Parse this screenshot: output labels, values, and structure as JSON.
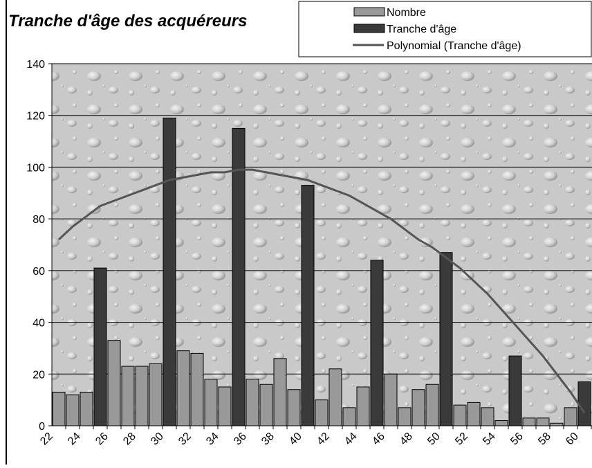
{
  "chart_data": {
    "type": "bar",
    "title": "Tranche d'âge des acquéreurs",
    "categories": [
      "22",
      null,
      "24",
      null,
      "26",
      null,
      "28",
      null,
      "30",
      null,
      "32",
      null,
      "34",
      null,
      "36",
      null,
      "38",
      null,
      "40",
      null,
      "42",
      null,
      "44",
      null,
      "46",
      null,
      "48",
      null,
      "50",
      null,
      "52",
      null,
      "54",
      null,
      "56",
      null,
      "58",
      null,
      "60"
    ],
    "series": [
      {
        "name": "Nombre",
        "type": "bar",
        "color": "#999999",
        "values": [
          13,
          12,
          13,
          null,
          33,
          23,
          23,
          24,
          null,
          29,
          28,
          18,
          15,
          null,
          18,
          16,
          26,
          14,
          null,
          10,
          22,
          7,
          15,
          null,
          20,
          7,
          14,
          16,
          null,
          8,
          9,
          7,
          2,
          null,
          3,
          3,
          1,
          7,
          null
        ]
      },
      {
        "name": "Tranche d'âge",
        "type": "bar",
        "color": "#3a3a3a",
        "values": [
          null,
          null,
          null,
          61,
          null,
          null,
          null,
          null,
          119,
          null,
          null,
          null,
          null,
          115,
          null,
          null,
          null,
          null,
          93,
          null,
          null,
          null,
          null,
          64,
          null,
          null,
          null,
          null,
          67,
          null,
          null,
          null,
          null,
          27,
          null,
          null,
          null,
          null,
          17
        ]
      },
      {
        "name": "Polynomial (Tranche d'âge)",
        "type": "line",
        "color": "#555555",
        "values": [
          72,
          77,
          81,
          85,
          87,
          89,
          91,
          93,
          95,
          96,
          97,
          98,
          98,
          99,
          99,
          98,
          97,
          96,
          95,
          93,
          91,
          89,
          86,
          83,
          80,
          76,
          72,
          69,
          65,
          61,
          56,
          51,
          45,
          39,
          33,
          27,
          20,
          13,
          5
        ]
      }
    ],
    "ylim": [
      0,
      140
    ],
    "yticks": [
      0,
      20,
      40,
      60,
      80,
      100,
      120,
      140
    ],
    "grid": true
  }
}
